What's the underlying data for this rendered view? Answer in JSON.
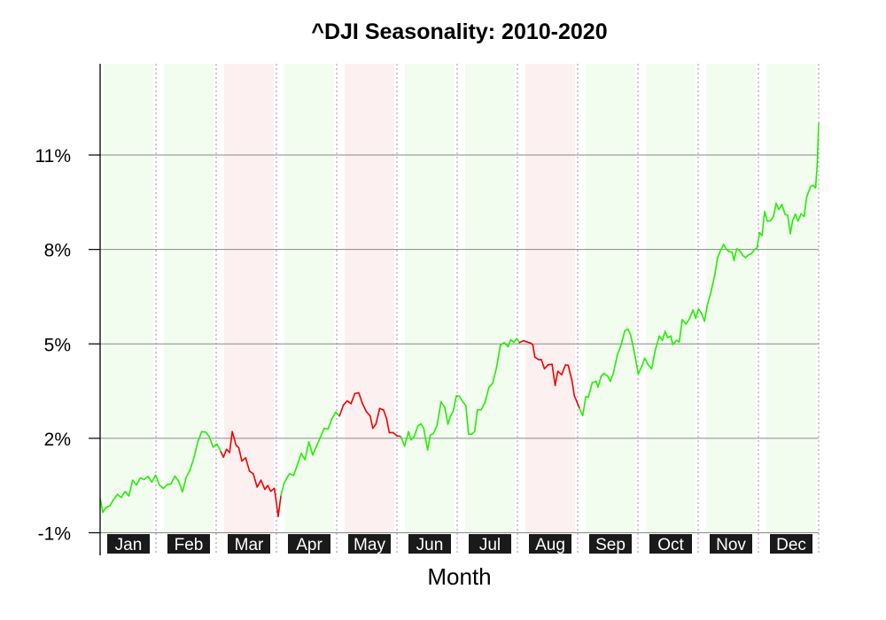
{
  "chart_data": {
    "type": "line",
    "title": "^DJI Seasonality: 2010-2020",
    "xlabel": "Month",
    "ylabel": "",
    "ylim": [
      -1,
      13
    ],
    "yticks": [
      -1,
      2,
      5,
      8,
      11
    ],
    "ytick_labels": [
      "-1%",
      "2%",
      "5%",
      "8%",
      "11%"
    ],
    "grid": true,
    "months": [
      "Jan",
      "Feb",
      "Mar",
      "Apr",
      "May",
      "Jun",
      "Jul",
      "Aug",
      "Sep",
      "Oct",
      "Nov",
      "Dec"
    ],
    "month_trend": [
      "up",
      "up",
      "down",
      "up",
      "down",
      "up",
      "up",
      "down",
      "up",
      "up",
      "up",
      "up"
    ],
    "colors": {
      "up_line": "#22ee00",
      "down_line": "#ee0000",
      "up_band": "#f2fdf0",
      "down_band": "#fdf0f0",
      "gridline": "#888888",
      "divider": "#a889b0",
      "tick_label_bg": "#1a1a1a",
      "tick_label_text": "#ffffff"
    },
    "series": [
      {
        "values": [
          [
            0.0,
            0.1
          ],
          [
            0.07,
            -0.35
          ],
          [
            0.15,
            -0.2
          ],
          [
            0.25,
            -0.15
          ],
          [
            0.35,
            0.05
          ],
          [
            0.45,
            0.22
          ],
          [
            0.55,
            0.12
          ],
          [
            0.65,
            0.31
          ],
          [
            0.75,
            0.17
          ],
          [
            0.85,
            0.67
          ],
          [
            0.95,
            0.52
          ],
          [
            1.05,
            0.74
          ],
          [
            1.15,
            0.69
          ],
          [
            1.25,
            0.79
          ],
          [
            1.35,
            0.61
          ],
          [
            1.45,
            0.83
          ],
          [
            1.55,
            0.51
          ],
          [
            1.65,
            0.41
          ],
          [
            1.75,
            0.53
          ],
          [
            1.85,
            0.55
          ],
          [
            1.95,
            0.8
          ],
          [
            2.05,
            0.64
          ],
          [
            2.15,
            0.3
          ],
          [
            2.25,
            0.76
          ],
          [
            2.35,
            1.0
          ],
          [
            2.45,
            1.39
          ],
          [
            2.55,
            1.88
          ],
          [
            2.65,
            2.21
          ],
          [
            2.75,
            2.2
          ],
          [
            2.85,
            2.05
          ],
          [
            2.95,
            1.72
          ],
          [
            3.05,
            1.82
          ],
          [
            3.15,
            1.58
          ],
          [
            3.22,
            1.4
          ],
          [
            3.3,
            1.65
          ],
          [
            3.38,
            1.55
          ],
          [
            3.45,
            2.21
          ],
          [
            3.55,
            1.78
          ],
          [
            3.62,
            1.7
          ],
          [
            3.7,
            1.28
          ],
          [
            3.8,
            1.38
          ],
          [
            3.9,
            0.96
          ],
          [
            4.0,
            0.87
          ],
          [
            4.1,
            0.45
          ],
          [
            4.2,
            0.67
          ],
          [
            4.3,
            0.38
          ],
          [
            4.38,
            0.5
          ],
          [
            4.45,
            0.32
          ],
          [
            4.55,
            0.41
          ],
          [
            4.65,
            -0.48
          ],
          [
            4.72,
            0.18
          ],
          [
            4.8,
            0.56
          ],
          [
            4.9,
            0.79
          ],
          [
            4.95,
            0.88
          ],
          [
            5.05,
            0.82
          ],
          [
            5.15,
            1.15
          ],
          [
            5.25,
            1.52
          ],
          [
            5.35,
            1.32
          ],
          [
            5.45,
            1.89
          ],
          [
            5.55,
            1.47
          ],
          [
            5.65,
            1.75
          ],
          [
            5.75,
            2.03
          ],
          [
            5.85,
            2.32
          ],
          [
            5.95,
            2.29
          ],
          [
            6.05,
            2.62
          ],
          [
            6.15,
            2.83
          ],
          [
            6.25,
            2.71
          ],
          [
            6.35,
            3.05
          ],
          [
            6.45,
            3.19
          ],
          [
            6.55,
            3.1
          ],
          [
            6.65,
            3.42
          ],
          [
            6.75,
            3.45
          ],
          [
            6.78,
            3.35
          ],
          [
            6.85,
            3.1
          ],
          [
            6.95,
            2.85
          ],
          [
            7.05,
            2.71
          ],
          [
            7.12,
            2.32
          ],
          [
            7.2,
            2.45
          ],
          [
            7.3,
            2.95
          ],
          [
            7.4,
            2.9
          ],
          [
            7.48,
            2.62
          ],
          [
            7.55,
            2.18
          ],
          [
            7.65,
            2.18
          ],
          [
            7.75,
            2.08
          ],
          [
            7.85,
            2.06
          ],
          [
            7.95,
            1.75
          ],
          [
            8.05,
            2.21
          ],
          [
            8.12,
            1.95
          ],
          [
            8.2,
            2.06
          ],
          [
            8.3,
            2.4
          ],
          [
            8.38,
            2.46
          ],
          [
            8.45,
            2.31
          ],
          [
            8.55,
            1.63
          ],
          [
            8.62,
            2.1
          ],
          [
            8.7,
            2.15
          ],
          [
            8.8,
            2.42
          ],
          [
            8.9,
            3.16
          ],
          [
            9.0,
            2.98
          ],
          [
            9.08,
            2.45
          ],
          [
            9.15,
            2.72
          ],
          [
            9.22,
            2.86
          ],
          [
            9.3,
            3.35
          ],
          [
            9.38,
            3.34
          ],
          [
            9.45,
            3.2
          ],
          [
            9.55,
            3.03
          ],
          [
            9.62,
            2.13
          ],
          [
            9.7,
            2.13
          ],
          [
            9.78,
            2.22
          ],
          [
            9.85,
            2.9
          ],
          [
            9.95,
            2.91
          ],
          [
            10.05,
            3.14
          ],
          [
            10.15,
            3.62
          ],
          [
            10.25,
            3.75
          ],
          [
            10.35,
            4.25
          ],
          [
            10.45,
            4.96
          ],
          [
            10.55,
            5.04
          ],
          [
            10.65,
            4.91
          ],
          [
            10.72,
            5.13
          ],
          [
            10.8,
            5.05
          ],
          [
            10.88,
            5.17
          ],
          [
            10.95,
            5.04
          ],
          [
            11.05,
            5.1
          ],
          [
            11.15,
            5.06
          ],
          [
            11.25,
            5.02
          ],
          [
            11.3,
            4.96
          ],
          [
            11.35,
            4.58
          ],
          [
            11.45,
            4.5
          ],
          [
            11.52,
            4.5
          ],
          [
            11.6,
            4.21
          ],
          [
            11.7,
            4.34
          ],
          [
            11.8,
            4.35
          ],
          [
            11.88,
            3.68
          ],
          [
            11.95,
            4.13
          ],
          [
            12.05,
            4.02
          ],
          [
            12.15,
            4.33
          ],
          [
            12.22,
            4.32
          ],
          [
            12.32,
            3.83
          ],
          [
            12.38,
            3.36
          ],
          [
            12.45,
            3.15
          ],
          [
            12.52,
            2.94
          ],
          [
            12.6,
            2.72
          ],
          [
            12.68,
            3.32
          ],
          [
            12.75,
            3.31
          ],
          [
            12.85,
            3.77
          ],
          [
            12.95,
            3.81
          ],
          [
            13.0,
            3.63
          ],
          [
            13.08,
            3.97
          ],
          [
            13.15,
            4.06
          ],
          [
            13.25,
            3.98
          ],
          [
            13.32,
            3.81
          ],
          [
            13.4,
            4.07
          ],
          [
            13.5,
            4.63
          ],
          [
            13.6,
            4.96
          ],
          [
            13.7,
            5.42
          ],
          [
            13.78,
            5.47
          ],
          [
            13.85,
            5.29
          ],
          [
            13.95,
            4.72
          ],
          [
            14.05,
            4.04
          ],
          [
            14.15,
            4.31
          ],
          [
            14.22,
            4.55
          ],
          [
            14.3,
            4.35
          ],
          [
            14.4,
            4.21
          ],
          [
            14.5,
            4.83
          ],
          [
            14.6,
            5.25
          ],
          [
            14.68,
            5.11
          ],
          [
            14.75,
            5.4
          ],
          [
            14.82,
            5.2
          ],
          [
            14.9,
            5.25
          ],
          [
            14.95,
            4.98
          ],
          [
            15.05,
            5.11
          ],
          [
            15.12,
            5.06
          ],
          [
            15.2,
            5.77
          ],
          [
            15.3,
            5.63
          ],
          [
            15.4,
            5.83
          ],
          [
            15.48,
            6.08
          ],
          [
            15.55,
            5.81
          ],
          [
            15.62,
            6.11
          ],
          [
            15.7,
            5.97
          ],
          [
            15.78,
            5.72
          ],
          [
            15.85,
            6.22
          ],
          [
            15.95,
            6.65
          ],
          [
            16.05,
            7.21
          ],
          [
            16.12,
            7.73
          ],
          [
            16.2,
            7.97
          ],
          [
            16.28,
            8.16
          ],
          [
            16.35,
            8.01
          ],
          [
            16.42,
            7.93
          ],
          [
            16.5,
            7.92
          ],
          [
            16.55,
            7.65
          ],
          [
            16.62,
            8.02
          ],
          [
            16.7,
            7.96
          ],
          [
            16.78,
            7.81
          ],
          [
            16.85,
            7.74
          ],
          [
            16.92,
            7.82
          ],
          [
            17.0,
            7.86
          ],
          [
            17.08,
            7.99
          ],
          [
            17.15,
            8.05
          ],
          [
            17.22,
            8.53
          ],
          [
            17.28,
            8.44
          ],
          [
            17.35,
            9.2
          ],
          [
            17.42,
            8.9
          ],
          [
            17.5,
            8.91
          ],
          [
            17.58,
            9.05
          ],
          [
            17.65,
            9.46
          ],
          [
            17.72,
            9.27
          ],
          [
            17.8,
            9.43
          ],
          [
            17.88,
            9.12
          ],
          [
            17.95,
            9.08
          ],
          [
            18.02,
            8.5
          ],
          [
            18.08,
            8.91
          ],
          [
            18.15,
            9.12
          ],
          [
            18.22,
            8.9
          ],
          [
            18.3,
            9.13
          ],
          [
            18.38,
            9.05
          ],
          [
            18.45,
            9.68
          ],
          [
            18.55,
            10.0
          ],
          [
            18.62,
            10.04
          ],
          [
            18.68,
            9.95
          ],
          [
            18.72,
            10.66
          ],
          [
            18.76,
            12.0
          ]
        ]
      }
    ]
  }
}
